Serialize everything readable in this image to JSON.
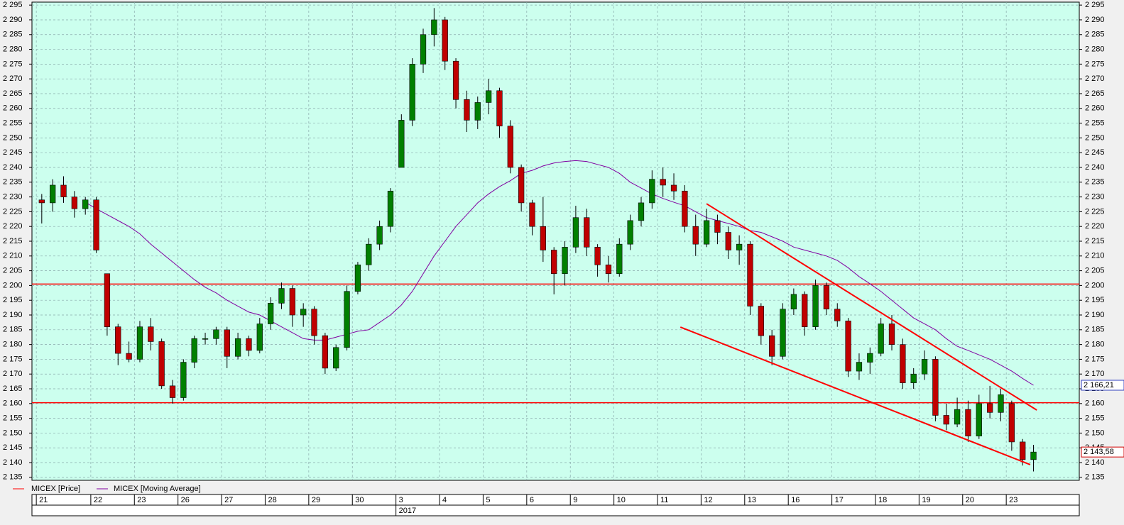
{
  "chart_data": {
    "type": "candlestick",
    "ylim": [
      2134,
      2296
    ],
    "xlim": [
      -0.9,
      95.2
    ],
    "yticks": [
      {
        "value": 2135,
        "label": "2 135"
      },
      {
        "value": 2140,
        "label": "2 140"
      },
      {
        "value": 2145,
        "label": "2 145"
      },
      {
        "value": 2150,
        "label": "2 150"
      },
      {
        "value": 2155,
        "label": "2 155"
      },
      {
        "value": 2160,
        "label": "2 160"
      },
      {
        "value": 2165,
        "label": "2 165"
      },
      {
        "value": 2170,
        "label": "2 170"
      },
      {
        "value": 2175,
        "label": "2 175"
      },
      {
        "value": 2180,
        "label": "2 180"
      },
      {
        "value": 2185,
        "label": "2 185"
      },
      {
        "value": 2190,
        "label": "2 190"
      },
      {
        "value": 2195,
        "label": "2 195"
      },
      {
        "value": 2200,
        "label": "2 200"
      },
      {
        "value": 2205,
        "label": "2 205"
      },
      {
        "value": 2210,
        "label": "2 210"
      },
      {
        "value": 2215,
        "label": "2 215"
      },
      {
        "value": 2220,
        "label": "2 220"
      },
      {
        "value": 2225,
        "label": "2 225"
      },
      {
        "value": 2230,
        "label": "2 230"
      },
      {
        "value": 2235,
        "label": "2 235"
      },
      {
        "value": 2240,
        "label": "2 240"
      },
      {
        "value": 2245,
        "label": "2 245"
      },
      {
        "value": 2250,
        "label": "2 250"
      },
      {
        "value": 2255,
        "label": "2 255"
      },
      {
        "value": 2260,
        "label": "2 260"
      },
      {
        "value": 2265,
        "label": "2 265"
      },
      {
        "value": 2270,
        "label": "2 270"
      },
      {
        "value": 2275,
        "label": "2 275"
      },
      {
        "value": 2280,
        "label": "2 280"
      },
      {
        "value": 2285,
        "label": "2 285"
      },
      {
        "value": 2290,
        "label": "2 290"
      },
      {
        "value": 2295,
        "label": "2 295"
      }
    ],
    "grid": true,
    "days": [
      {
        "label": "21",
        "start": 0
      },
      {
        "label": "22",
        "start": 5
      },
      {
        "label": "23",
        "start": 9
      },
      {
        "label": "26",
        "start": 13
      },
      {
        "label": "27",
        "start": 17
      },
      {
        "label": "28",
        "start": 21
      },
      {
        "label": "29",
        "start": 25
      },
      {
        "label": "30",
        "start": 29
      },
      {
        "label": "3",
        "start": 33
      },
      {
        "label": "4",
        "start": 37
      },
      {
        "label": "5",
        "start": 41
      },
      {
        "label": "6",
        "start": 45
      },
      {
        "label": "9",
        "start": 49
      },
      {
        "label": "10",
        "start": 53
      },
      {
        "label": "11",
        "start": 57
      },
      {
        "label": "12",
        "start": 61
      },
      {
        "label": "13",
        "start": 65
      },
      {
        "label": "16",
        "start": 69
      },
      {
        "label": "17",
        "start": 73
      },
      {
        "label": "18",
        "start": 77
      },
      {
        "label": "19",
        "start": 81
      },
      {
        "label": "20",
        "start": 85
      },
      {
        "label": "23",
        "start": 89
      }
    ],
    "year": {
      "label": "2017",
      "start": 33
    },
    "price": {
      "name": "MICEX [Price]",
      "color": "#ff0000",
      "up_color": "#008000",
      "down_color": "#c00000",
      "last_value_label": "2 143,58",
      "open": [
        2229,
        2228,
        2234,
        2230,
        2226,
        2229,
        2204,
        2186,
        2177,
        2175,
        2186,
        2181,
        2166,
        2162,
        2174,
        2182,
        2182,
        2185,
        2176,
        2182,
        2178,
        2187,
        2194,
        2199,
        2190,
        2192,
        2183,
        2172,
        2179,
        2198,
        2207,
        2214,
        2220,
        2240,
        2256,
        2275,
        2285,
        2290,
        2276,
        2263,
        2256,
        2262,
        2266,
        2254,
        2240,
        2228,
        2220,
        2212,
        2204,
        2213,
        2223,
        2213,
        2207,
        2204,
        2214,
        2222,
        2228,
        2236,
        2234,
        2232,
        2220,
        2214,
        2222,
        2218,
        2212,
        2214,
        2193,
        2183,
        2176,
        2192,
        2197,
        2186,
        2200,
        2192,
        2188,
        2171,
        2174,
        2177,
        2187,
        2180,
        2167,
        2170,
        2175,
        2156,
        2153,
        2158,
        2149,
        2160,
        2157,
        2160,
        2147,
        2141
      ],
      "high": [
        2231,
        2236,
        2237,
        2232,
        2230,
        2230,
        2204,
        2187,
        2181,
        2188,
        2189,
        2182,
        2168,
        2175,
        2183,
        2184,
        2186,
        2186,
        2184,
        2183,
        2189,
        2196,
        2201,
        2200,
        2194,
        2193,
        2184,
        2180,
        2200,
        2208,
        2216,
        2222,
        2233,
        2258,
        2277,
        2287,
        2294,
        2291,
        2277,
        2266,
        2264,
        2270,
        2267,
        2256,
        2241,
        2229,
        2230,
        2213,
        2215,
        2227,
        2226,
        2214,
        2210,
        2216,
        2224,
        2230,
        2239,
        2240,
        2238,
        2234,
        2224,
        2226,
        2224,
        2220,
        2217,
        2215,
        2194,
        2185,
        2194,
        2199,
        2198,
        2202,
        2201,
        2194,
        2189,
        2177,
        2179,
        2189,
        2190,
        2182,
        2172,
        2178,
        2176,
        2160,
        2162,
        2161,
        2163,
        2166,
        2165,
        2161,
        2148,
        2146
      ],
      "low": [
        2221,
        2225,
        2228,
        2223,
        2224,
        2211,
        2183,
        2173,
        2174,
        2174,
        2178,
        2165,
        2160,
        2161,
        2172,
        2180,
        2180,
        2172,
        2175,
        2176,
        2177,
        2185,
        2192,
        2186,
        2186,
        2180,
        2170,
        2171,
        2178,
        2197,
        2205,
        2212,
        2218,
        2240,
        2254,
        2272,
        2281,
        2273,
        2260,
        2252,
        2253,
        2258,
        2250,
        2238,
        2225,
        2217,
        2208,
        2197,
        2200,
        2211,
        2210,
        2203,
        2201,
        2203,
        2212,
        2220,
        2226,
        2230,
        2229,
        2218,
        2210,
        2213,
        2214,
        2209,
        2207,
        2190,
        2180,
        2173,
        2175,
        2190,
        2183,
        2185,
        2190,
        2186,
        2169,
        2168,
        2170,
        2176,
        2178,
        2165,
        2165,
        2168,
        2154,
        2151,
        2152,
        2147,
        2148,
        2155,
        2154,
        2144,
        2139,
        2137
      ],
      "close": [
        2228,
        2234,
        2230,
        2226,
        2229,
        2212,
        2186,
        2177,
        2175,
        2186,
        2181,
        2166,
        2162,
        2174,
        2182,
        2182,
        2185,
        2176,
        2182,
        2178,
        2187,
        2194,
        2199,
        2190,
        2192,
        2183,
        2172,
        2179,
        2198,
        2207,
        2214,
        2220,
        2232,
        2256,
        2275,
        2285,
        2290,
        2276,
        2263,
        2256,
        2262,
        2266,
        2254,
        2240,
        2228,
        2220,
        2212,
        2204,
        2213,
        2223,
        2213,
        2207,
        2204,
        2214,
        2222,
        2228,
        2236,
        2234,
        2232,
        2220,
        2214,
        2222,
        2218,
        2212,
        2214,
        2193,
        2183,
        2176,
        2192,
        2197,
        2186,
        2200,
        2192,
        2188,
        2171,
        2174,
        2177,
        2187,
        2180,
        2167,
        2170,
        2175,
        2156,
        2153,
        2158,
        2149,
        2160,
        2157,
        2163,
        2147,
        2141,
        2143.58
      ]
    },
    "moving_average": {
      "name": "MICEX [Moving Average]",
      "color": "#8000a0",
      "last_value_label": "2 166,21",
      "values": [
        null,
        null,
        null,
        null,
        2228.2,
        2226,
        2224,
        2222,
        2220,
        2217.5,
        2214,
        2211,
        2208,
        2205,
        2202,
        2199.4,
        2197.5,
        2195,
        2193,
        2191,
        2190,
        2188,
        2186,
        2184,
        2182,
        2181.5,
        2181.5,
        2182.5,
        2183.5,
        2184.5,
        2185,
        2187.5,
        2190,
        2193.4,
        2198,
        2204,
        2210,
        2215,
        2220,
        2224,
        2228,
        2231,
        2233.5,
        2235.5,
        2238,
        2239,
        2240.5,
        2241.5,
        2242,
        2242.3,
        2242,
        2241,
        2240,
        2238,
        2235,
        2233,
        2231,
        2229.5,
        2228.2,
        2227,
        2225,
        2223,
        2222,
        2221,
        2220,
        2218.6,
        2218,
        2216.5,
        2215,
        2213,
        2212,
        2211,
        2210,
        2208.5,
        2206,
        2203,
        2200.6,
        2198,
        2195,
        2192,
        2189,
        2187,
        2185,
        2182,
        2179.4,
        2178,
        2176.5,
        2175,
        2173,
        2171,
        2168.5,
        2166.21
      ]
    },
    "levels": [
      2200.5,
      2160.3
    ],
    "trend_lines": [
      {
        "x": [
          61,
          91.3
        ],
        "y": [
          2227.7,
          2157.8
        ]
      },
      {
        "x": [
          58.6,
          90.7
        ],
        "y": [
          2185.9,
          2139.3
        ]
      }
    ]
  }
}
